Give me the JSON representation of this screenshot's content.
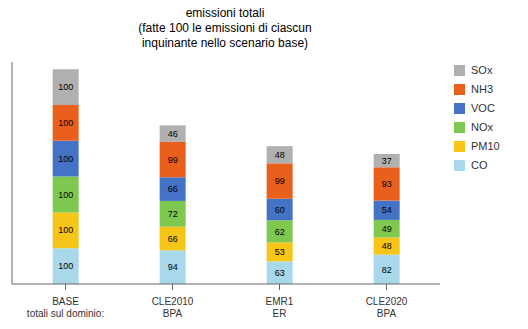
{
  "chart_data": {
    "type": "bar",
    "title": "emissioni totali\n(fatte 100 le emissioni di ciascun\ninquinante nello scenario base)",
    "categories": [
      "BASE\ntotali sul dominio:",
      "CLE2010\nBPA",
      "EMR1\nER",
      "CLE2020\nBPA"
    ],
    "series": [
      {
        "name": "CO",
        "color": "#a8d8ea",
        "values": [
          100,
          94,
          63,
          82
        ]
      },
      {
        "name": "PM10",
        "color": "#f5c518",
        "values": [
          100,
          66,
          53,
          48
        ]
      },
      {
        "name": "NOx",
        "color": "#7ec850",
        "values": [
          100,
          72,
          62,
          49
        ]
      },
      {
        "name": "VOC",
        "color": "#4472c4",
        "values": [
          100,
          66,
          60,
          54
        ]
      },
      {
        "name": "NH3",
        "color": "#e8601c",
        "values": [
          100,
          99,
          99,
          93
        ]
      },
      {
        "name": "SOx",
        "color": "#b0b0b0",
        "values": [
          100,
          46,
          48,
          37
        ]
      }
    ],
    "ylim": [
      0,
      620
    ],
    "stacked": true,
    "data_labels": true,
    "grid": false,
    "legend": "right",
    "tick_labels": "x"
  }
}
